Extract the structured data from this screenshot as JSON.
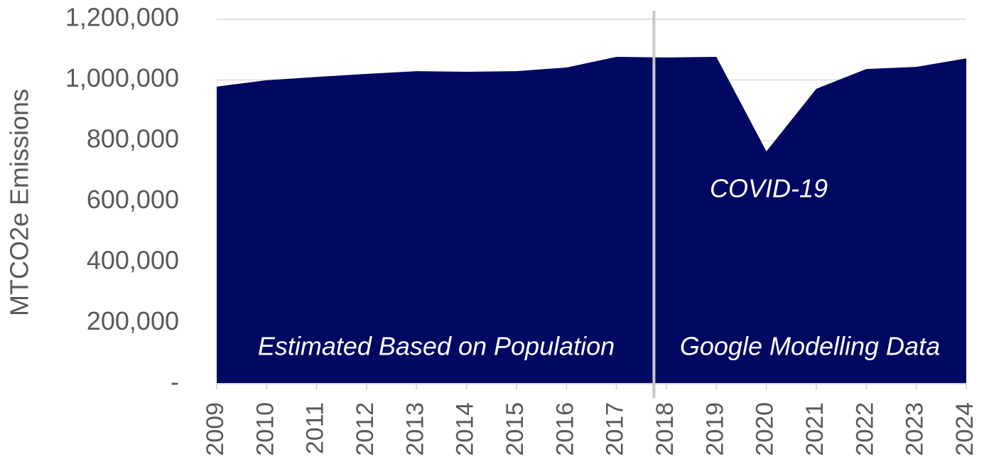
{
  "chart_data": {
    "type": "area",
    "ylabel": "MTCO2e Emissions",
    "categories": [
      "2009",
      "2010",
      "2011",
      "2012",
      "2013",
      "2014",
      "2015",
      "2016",
      "2017",
      "2018",
      "2019",
      "2020",
      "2021",
      "2022",
      "2023",
      "2024"
    ],
    "values": [
      978000,
      999000,
      1010000,
      1020000,
      1029000,
      1027000,
      1029000,
      1041000,
      1076000,
      1074000,
      1076000,
      765000,
      971000,
      1036000,
      1043000,
      1071000
    ],
    "color": "#000862",
    "ylim": [
      0,
      1200000
    ],
    "yticks": [
      {
        "value": 0,
        "label": "-"
      },
      {
        "value": 200000,
        "label": "200,000"
      },
      {
        "value": 400000,
        "label": "400,000"
      },
      {
        "value": 600000,
        "label": "600,000"
      },
      {
        "value": 800000,
        "label": "800,000"
      },
      {
        "value": 1000000,
        "label": "1,000,000"
      },
      {
        "value": 1200000,
        "label": "1,200,000"
      }
    ],
    "grid": true,
    "annotations": [
      "Estimated Based on Population",
      "Google Modelling Data",
      "COVID-19"
    ]
  }
}
